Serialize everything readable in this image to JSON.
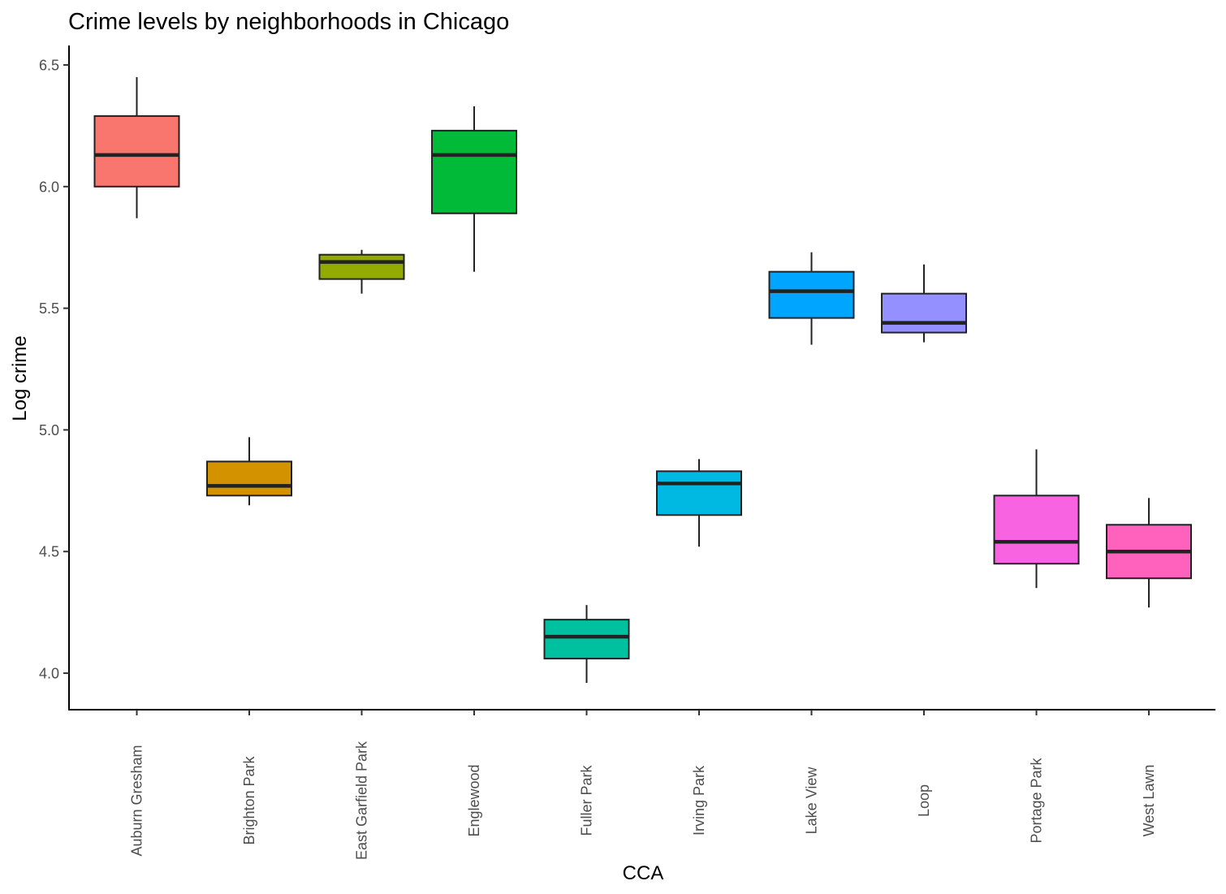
{
  "chart_data": {
    "type": "boxplot",
    "title": "Crime levels by neighborhoods in Chicago",
    "xlabel": "CCA",
    "ylabel": "Log crime",
    "ylim": [
      3.85,
      6.58
    ],
    "yticks": [
      "4.0",
      "4.5",
      "5.0",
      "5.5",
      "6.0",
      "6.5"
    ],
    "ytick_values": [
      4.0,
      4.5,
      5.0,
      5.5,
      6.0,
      6.5
    ],
    "grid": false,
    "legend": "none",
    "categories": [
      "Auburn Gresham",
      "Brighton Park",
      "East Garfield Park",
      "Englewood",
      "Fuller Park",
      "Irving Park",
      "Lake View",
      "Loop",
      "Portage Park",
      "West Lawn"
    ],
    "boxes": [
      {
        "name": "Auburn Gresham",
        "min": 5.87,
        "q1": 6.0,
        "median": 6.13,
        "q3": 6.29,
        "max": 6.45,
        "color": "#F8766D"
      },
      {
        "name": "Brighton Park",
        "min": 4.69,
        "q1": 4.73,
        "median": 4.77,
        "q3": 4.87,
        "max": 4.97,
        "color": "#D39200"
      },
      {
        "name": "East Garfield Park",
        "min": 5.56,
        "q1": 5.62,
        "median": 5.69,
        "q3": 5.72,
        "max": 5.74,
        "color": "#93AA00"
      },
      {
        "name": "Englewood",
        "min": 5.65,
        "q1": 5.89,
        "median": 6.13,
        "q3": 6.23,
        "max": 6.33,
        "color": "#00BA38"
      },
      {
        "name": "Fuller Park",
        "min": 3.96,
        "q1": 4.06,
        "median": 4.15,
        "q3": 4.22,
        "max": 4.28,
        "color": "#00C19F"
      },
      {
        "name": "Irving Park",
        "min": 4.52,
        "q1": 4.65,
        "median": 4.78,
        "q3": 4.83,
        "max": 4.88,
        "color": "#00B9E3"
      },
      {
        "name": "Lake View",
        "min": 5.35,
        "q1": 5.46,
        "median": 5.57,
        "q3": 5.65,
        "max": 5.73,
        "color": "#00A5FF"
      },
      {
        "name": "Loop",
        "min": 5.36,
        "q1": 5.4,
        "median": 5.44,
        "q3": 5.56,
        "max": 5.68,
        "color": "#9590FF"
      },
      {
        "name": "Portage Park",
        "min": 4.35,
        "q1": 4.45,
        "median": 4.54,
        "q3": 4.73,
        "max": 4.92,
        "color": "#F763E0"
      },
      {
        "name": "West Lawn",
        "min": 4.27,
        "q1": 4.39,
        "median": 4.5,
        "q3": 4.61,
        "max": 4.72,
        "color": "#FF62BC"
      }
    ]
  }
}
